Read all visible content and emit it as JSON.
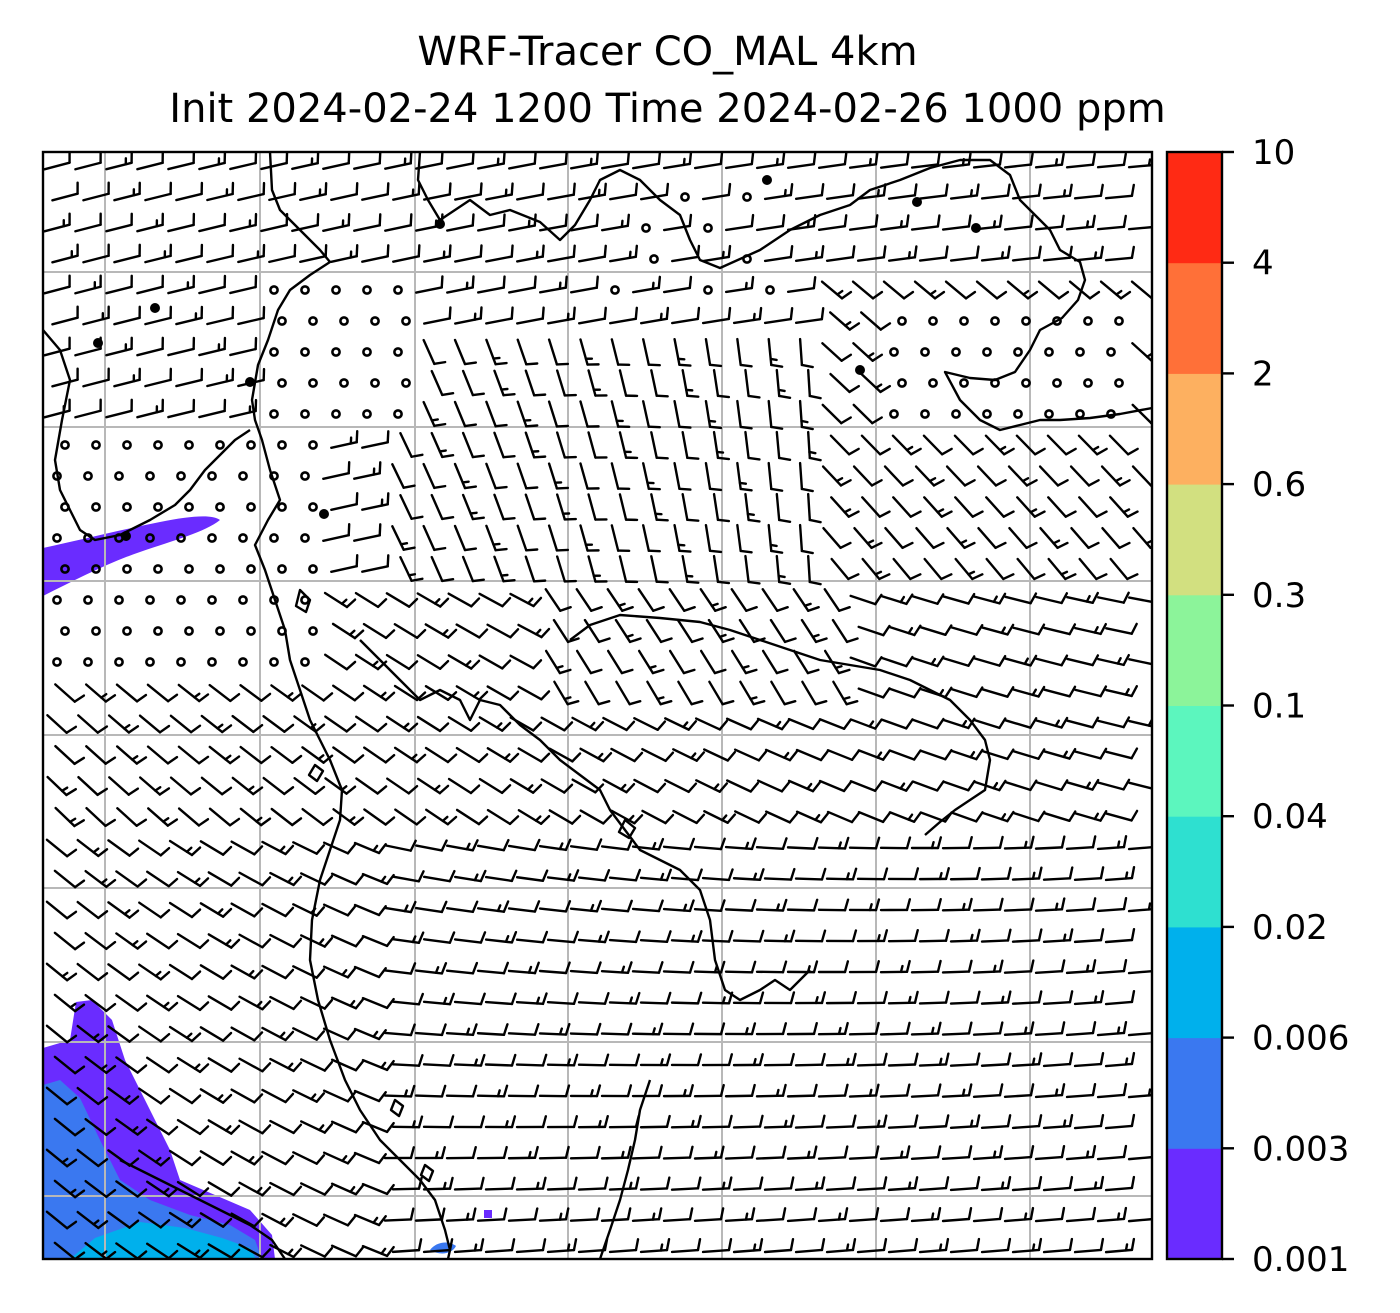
{
  "figure": {
    "title_line1": "WRF-Tracer CO_MAL 4km",
    "title_line2": "Init 2024-02-24 1200 Time 2024-02-26 1000 ppm"
  },
  "colorbar": {
    "levels": [
      "0.001",
      "0.003",
      "0.006",
      "0.02",
      "0.04",
      "0.1",
      "0.3",
      "0.6",
      "2",
      "4",
      "10"
    ],
    "colors": [
      "#6a2cff",
      "#3a78f0",
      "#00b0ec",
      "#2ee0d0",
      "#5cf6be",
      "#8cf49a",
      "#d2e080",
      "#fdb060",
      "#ff7038",
      "#ff2a14"
    ]
  },
  "map": {
    "gridlines": true,
    "coastline_color": "#000000",
    "wind_barbs": true
  }
}
